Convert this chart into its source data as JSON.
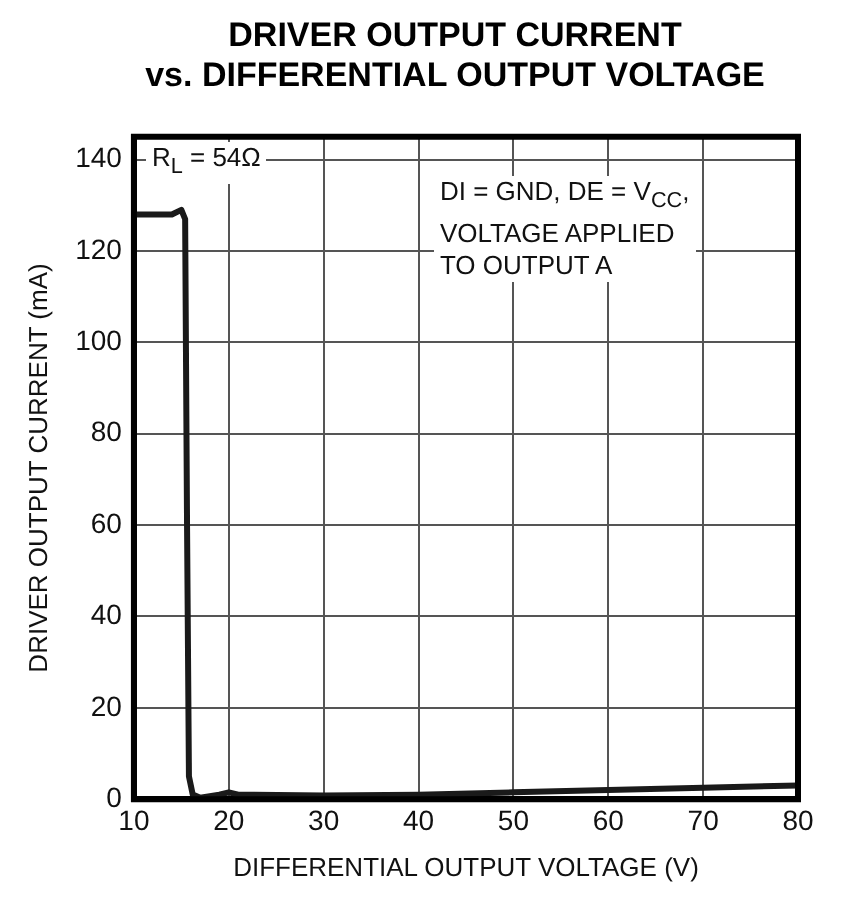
{
  "chart_data": {
    "type": "line",
    "title": "DRIVER OUTPUT CURRENT\nvs. DIFFERENTIAL OUTPUT VOLTAGE",
    "xlabel": "DIFFERENTIAL OUTPUT VOLTAGE (V)",
    "ylabel": "DRIVER OUTPUT CURRENT (mA)",
    "series": [
      {
        "color": "#1a1a1a",
        "x": [
          10,
          14,
          15,
          15.4,
          15.6,
          15.8,
          16.2,
          17,
          19,
          20,
          21,
          30,
          40,
          50,
          60,
          70,
          80
        ],
        "values": [
          128,
          128,
          129,
          127,
          60,
          5,
          1,
          0.3,
          1,
          1.5,
          1,
          0.8,
          1,
          1.5,
          2,
          2.5,
          3
        ]
      }
    ],
    "xlim": [
      10,
      80
    ],
    "xticks": [
      10,
      20,
      30,
      40,
      50,
      60,
      70,
      80
    ],
    "ylim": [
      0,
      145
    ],
    "yticks": [
      0,
      20,
      40,
      60,
      80,
      100,
      120,
      140
    ],
    "grid": true,
    "marker": "none",
    "line_style": "solid",
    "annotations": [
      "R$_{L}$ = 54Ω",
      "DI = GND, DE = V$_{CC}$,\nVOLTAGE APPLIED\nTO OUTPUT A"
    ]
  }
}
